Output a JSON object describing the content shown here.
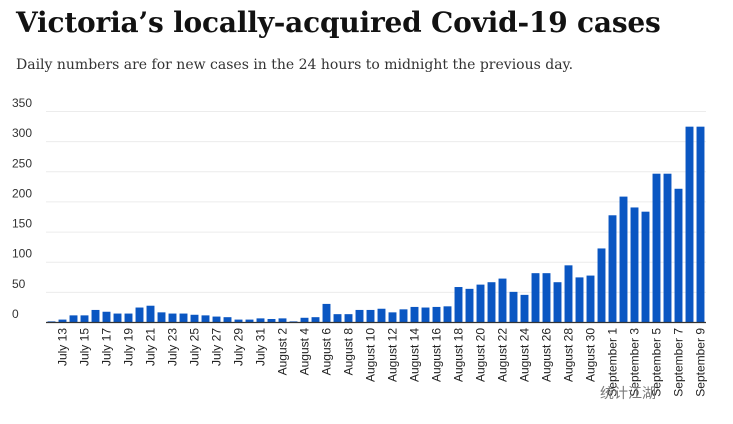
{
  "header": {
    "title": "Victoria’s locally-acquired Covid-19 cases",
    "subtitle": "Daily numbers are for new cases in the 24 hours to midnight the previous day."
  },
  "watermark": "统计江湖",
  "chart_data": {
    "type": "bar",
    "title": "Victoria’s locally-acquired Covid-19 cases",
    "subtitle": "Daily numbers are for new cases in the 24 hours to midnight the previous day.",
    "xlabel": "",
    "ylabel": "",
    "ylim": [
      0,
      350
    ],
    "yticks": [
      0,
      50,
      100,
      150,
      200,
      250,
      300,
      350
    ],
    "grid": true,
    "bar_color": "#0a56c2",
    "categories": [
      "July 12",
      "July 13",
      "July 14",
      "July 15",
      "July 16",
      "July 17",
      "July 18",
      "July 19",
      "July 20",
      "July 21",
      "July 22",
      "July 23",
      "July 24",
      "July 25",
      "July 26",
      "July 27",
      "July 28",
      "July 29",
      "July 30",
      "July 31",
      "August 1",
      "August 2",
      "August 3",
      "August 4",
      "August 5",
      "August 6",
      "August 7",
      "August 8",
      "August 9",
      "August 10",
      "August 11",
      "August 12",
      "August 13",
      "August 14",
      "August 15",
      "August 16",
      "August 17",
      "August 18",
      "August 19",
      "August 20",
      "August 21",
      "August 22",
      "August 23",
      "August 24",
      "August 25",
      "August 26",
      "August 27",
      "August 28",
      "August 29",
      "August 30",
      "August 31",
      "September 1",
      "September 2",
      "September 3",
      "September 4",
      "September 5",
      "September 6",
      "September 7",
      "September 8",
      "September 9"
    ],
    "tick_labels": [
      "July 13",
      "July 15",
      "July 17",
      "July 19",
      "July 21",
      "July 23",
      "July 25",
      "July 27",
      "July 29",
      "July 31",
      "August 2",
      "August 4",
      "August 6",
      "August 8",
      "August 10",
      "August 12",
      "August 14",
      "August 16",
      "August 18",
      "August 20",
      "August 22",
      "August 24",
      "August 26",
      "August 28",
      "August 30",
      "September 1",
      "September 3",
      "September 5",
      "September 7",
      "September 9"
    ],
    "values": [
      1,
      4,
      11,
      11,
      20,
      17,
      14,
      14,
      24,
      27,
      16,
      14,
      14,
      12,
      11,
      9,
      8,
      4,
      4,
      6,
      5,
      6,
      1,
      7,
      8,
      30,
      13,
      13,
      20,
      20,
      22,
      16,
      21,
      25,
      24,
      25,
      26,
      58,
      55,
      62,
      66,
      72,
      50,
      45,
      81,
      81,
      66,
      94,
      74,
      77,
      122,
      177,
      208,
      190,
      183,
      246,
      246,
      221,
      324,
      324
    ]
  }
}
